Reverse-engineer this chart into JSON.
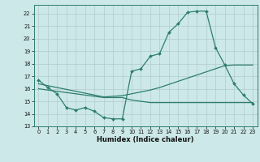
{
  "title": "",
  "xlabel": "Humidex (Indice chaleur)",
  "bg_color": "#cce8e8",
  "line_color": "#2e7d6e",
  "grid_color": "#b8d4d4",
  "xlim": [
    -0.5,
    23.5
  ],
  "ylim": [
    13,
    22.7
  ],
  "yticks": [
    13,
    14,
    15,
    16,
    17,
    18,
    19,
    20,
    21,
    22
  ],
  "xticks": [
    0,
    1,
    2,
    3,
    4,
    5,
    6,
    7,
    8,
    9,
    10,
    11,
    12,
    13,
    14,
    15,
    16,
    17,
    18,
    19,
    20,
    21,
    22,
    23
  ],
  "line1_x": [
    0,
    1,
    2,
    3,
    4,
    5,
    6,
    7,
    8,
    9,
    10,
    11,
    12,
    13,
    14,
    15,
    16,
    17,
    18,
    19,
    20,
    21,
    22,
    23
  ],
  "line1_y": [
    16.7,
    16.1,
    15.6,
    14.5,
    14.3,
    14.5,
    14.2,
    13.7,
    13.6,
    13.6,
    17.4,
    17.6,
    18.6,
    18.8,
    20.5,
    21.2,
    22.1,
    22.2,
    22.2,
    19.3,
    17.9,
    16.4,
    15.5,
    14.8
  ],
  "line2_x": [
    0,
    1,
    2,
    3,
    4,
    5,
    6,
    7,
    8,
    9,
    10,
    11,
    12,
    13,
    14,
    15,
    16,
    17,
    18,
    19,
    20,
    21,
    22,
    23
  ],
  "line2_y": [
    16.4,
    16.25,
    16.1,
    15.95,
    15.8,
    15.65,
    15.5,
    15.35,
    15.4,
    15.45,
    15.6,
    15.75,
    15.9,
    16.1,
    16.35,
    16.6,
    16.85,
    17.1,
    17.35,
    17.6,
    17.85,
    17.9,
    17.9,
    17.9
  ],
  "line3_x": [
    0,
    1,
    2,
    3,
    4,
    5,
    6,
    7,
    8,
    9,
    10,
    11,
    12,
    13,
    14,
    15,
    16,
    17,
    18,
    19,
    20,
    21,
    22,
    23
  ],
  "line3_y": [
    16.0,
    15.9,
    15.8,
    15.7,
    15.6,
    15.5,
    15.4,
    15.3,
    15.3,
    15.3,
    15.1,
    15.0,
    14.9,
    14.9,
    14.9,
    14.9,
    14.9,
    14.9,
    14.9,
    14.9,
    14.9,
    14.9,
    14.9,
    14.9
  ]
}
